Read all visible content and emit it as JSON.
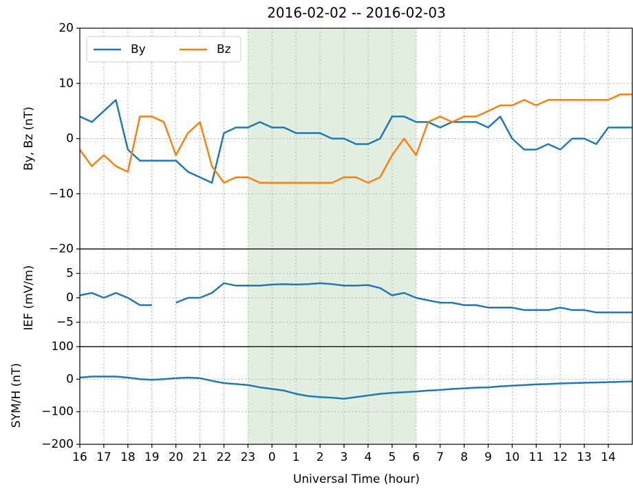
{
  "chart_data": {
    "type": "line",
    "title": "2016-02-02 -- 2016-02-03",
    "xlabel": "Universal Time (hour)",
    "xlim": [
      16,
      39
    ],
    "xticks": [
      16,
      17,
      18,
      19,
      20,
      21,
      22,
      23,
      {
        "value": 24,
        "label": "0"
      },
      {
        "value": 25,
        "label": "1"
      },
      {
        "value": 26,
        "label": "2"
      },
      {
        "value": 27,
        "label": "3"
      },
      {
        "value": 28,
        "label": "4"
      },
      {
        "value": 29,
        "label": "5"
      },
      {
        "value": 30,
        "label": "6"
      },
      {
        "value": 31,
        "label": "7"
      },
      {
        "value": 32,
        "label": "8"
      },
      {
        "value": 33,
        "label": "9"
      },
      {
        "value": 34,
        "label": "10"
      },
      {
        "value": 35,
        "label": "11"
      },
      {
        "value": 36,
        "label": "12"
      },
      {
        "value": 37,
        "label": "13"
      },
      {
        "value": 38,
        "label": "14"
      }
    ],
    "shade": [
      23,
      30
    ],
    "shade_color": "#e2eee0",
    "grid": true,
    "x": [
      16,
      16.5,
      17,
      17.5,
      18,
      18.5,
      19,
      19.5,
      20,
      20.5,
      21,
      21.5,
      22,
      22.5,
      23,
      23.5,
      24,
      24.5,
      25,
      25.5,
      26,
      26.5,
      27,
      27.5,
      28,
      28.5,
      29,
      29.5,
      30,
      30.5,
      31,
      31.5,
      32,
      32.5,
      33,
      33.5,
      34,
      34.5,
      35,
      35.5,
      36,
      36.5,
      37,
      37.5,
      38,
      38.5,
      39
    ],
    "panels": [
      {
        "ylabel": "By, Bz (nT)",
        "ylim": [
          -20,
          20
        ],
        "yticks": [
          {
            "value": -20,
            "label": "−20"
          },
          {
            "value": -10,
            "label": "−10"
          },
          0,
          10,
          20
        ],
        "legend": "upper left",
        "series": [
          {
            "name": "By",
            "color": "#1f77b4",
            "values": [
              4,
              3,
              5,
              7,
              -2,
              -4,
              -4,
              -4,
              -4,
              -6,
              -7,
              -8,
              1,
              2,
              2,
              3,
              2,
              2,
              1,
              1,
              1,
              0,
              0,
              -1,
              -1,
              0,
              4,
              4,
              3,
              3,
              2,
              3,
              3,
              3,
              2,
              4,
              0,
              -2,
              -2,
              -1,
              -2,
              0,
              0,
              -1,
              2,
              2,
              2
            ]
          },
          {
            "name": "Bz",
            "color": "#ff7f0e",
            "values": [
              -2,
              -5,
              -3,
              -5,
              -6,
              4,
              4,
              3,
              -3,
              1,
              3,
              -5,
              -8,
              -7,
              -7,
              -8,
              -8,
              -8,
              -8,
              -8,
              -8,
              -8,
              -7,
              -7,
              -8,
              -7,
              -3,
              0,
              -3,
              3,
              4,
              3,
              4,
              4,
              5,
              6,
              6,
              7,
              6,
              7,
              7,
              7,
              7,
              7,
              7,
              8,
              8
            ]
          }
        ]
      },
      {
        "ylabel": "IEF (mV/m)",
        "ylim": [
          -10,
          10
        ],
        "yticks": [
          {
            "value": -5,
            "label": "−5"
          },
          0,
          5
        ],
        "series": [
          {
            "color": "#1f77b4",
            "values": [
              0.5,
              1,
              0,
              1,
              0,
              -1.5,
              -1.5,
              null,
              -1,
              0,
              0,
              1,
              3,
              2.5,
              2.5,
              2.5,
              2.7,
              2.8,
              2.7,
              2.8,
              3,
              2.8,
              2.5,
              2.5,
              2.6,
              2,
              0.5,
              1,
              0,
              -0.5,
              -1,
              -1,
              -1.5,
              -1.5,
              -2,
              -2,
              -2,
              -2.5,
              -2.5,
              -2.5,
              -2,
              -2.5,
              -2.5,
              -3,
              -3,
              -3,
              -3
            ]
          }
        ]
      },
      {
        "ylabel": "SYM/H (nT)",
        "ylim": [
          -200,
          100
        ],
        "yticks": [
          {
            "value": -200,
            "label": "−200"
          },
          {
            "value": -100,
            "label": "−100"
          },
          0,
          100
        ],
        "series": [
          {
            "color": "#1f77b4",
            "values": [
              5,
              8,
              8,
              8,
              5,
              0,
              -2,
              0,
              3,
              5,
              3,
              -5,
              -12,
              -15,
              -18,
              -25,
              -30,
              -35,
              -45,
              -52,
              -55,
              -57,
              -60,
              -55,
              -50,
              -45,
              -42,
              -40,
              -38,
              -35,
              -33,
              -30,
              -28,
              -26,
              -25,
              -22,
              -20,
              -18,
              -16,
              -15,
              -13,
              -12,
              -11,
              -10,
              -9,
              -8,
              -7
            ]
          }
        ]
      }
    ]
  }
}
